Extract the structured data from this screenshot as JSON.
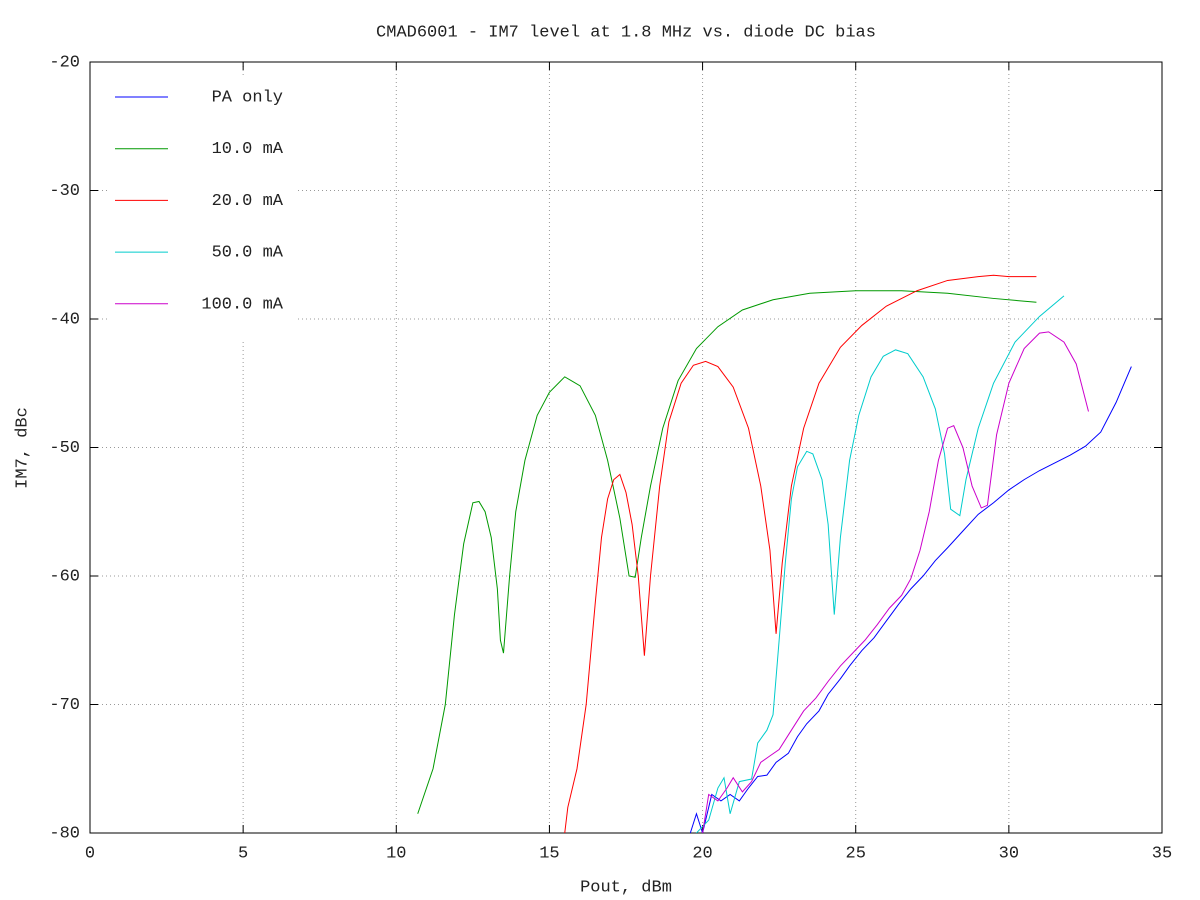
{
  "chart_data": {
    "type": "line",
    "title": "CMAD6001 - IM7 level at 1.8 MHz vs. diode DC bias",
    "x_label": "Pout, dBm",
    "y_label": "IM7, dBc",
    "xlim": [
      0,
      35
    ],
    "ylim": [
      -80,
      -20
    ],
    "xticks": [
      0,
      5,
      10,
      15,
      20,
      25,
      30,
      35
    ],
    "yticks": [
      -80,
      -70,
      -60,
      -50,
      -40,
      -30,
      -20
    ],
    "grid": true,
    "legend": "top-left",
    "series": [
      {
        "name": "PA only",
        "color": "#0000ff",
        "x": [
          19.6,
          19.8,
          20.0,
          20.3,
          20.6,
          20.9,
          21.2,
          21.5,
          21.8,
          22.1,
          22.4,
          22.8,
          23.1,
          23.4,
          23.8,
          24.1,
          24.5,
          24.8,
          25.2,
          25.6,
          26,
          26.4,
          26.8,
          27.2,
          27.6,
          28,
          28.5,
          29,
          29.5,
          30,
          30.5,
          31,
          31.5,
          32,
          32.5,
          33,
          33.5,
          34
        ],
        "values": [
          -80,
          -78.5,
          -80,
          -77,
          -77.5,
          -77,
          -77.5,
          -76.5,
          -75.6,
          -75.5,
          -74.5,
          -73.8,
          -72.5,
          -71.5,
          -70.5,
          -69.2,
          -68,
          -67,
          -65.8,
          -64.8,
          -63.5,
          -62.2,
          -61,
          -60,
          -58.8,
          -57.8,
          -56.5,
          -55.2,
          -54.3,
          -53.3,
          -52.5,
          -51.8,
          -51.2,
          -50.6,
          -49.9,
          -48.8,
          -46.5,
          -43.7
        ]
      },
      {
        "name": "10.0 mA",
        "color": "#009900",
        "x": [
          10.7,
          11.2,
          11.6,
          11.9,
          12.2,
          12.5,
          12.7,
          12.9,
          13.1,
          13.3,
          13.4,
          13.5,
          13.7,
          13.9,
          14.2,
          14.6,
          15,
          15.5,
          16,
          16.5,
          16.9,
          17.3,
          17.6,
          17.8,
          18,
          18.3,
          18.7,
          19.2,
          19.8,
          20.5,
          21.3,
          22.3,
          23.5,
          25,
          26.5,
          28,
          29.5,
          30.9
        ],
        "values": [
          -78.5,
          -75,
          -70,
          -63,
          -57.5,
          -54.3,
          -54.2,
          -55,
          -57,
          -61,
          -65,
          -66,
          -60,
          -55,
          -51,
          -47.5,
          -45.7,
          -44.5,
          -45.2,
          -47.5,
          -51,
          -55.5,
          -60,
          -60.1,
          -57,
          -53,
          -48.5,
          -44.8,
          -42.3,
          -40.6,
          -39.3,
          -38.5,
          -38,
          -37.8,
          -37.8,
          -38,
          -38.4,
          -38.7
        ]
      },
      {
        "name": "20.0 mA",
        "color": "#ff0000",
        "x": [
          15.5,
          15.6,
          15.9,
          16.2,
          16.5,
          16.7,
          16.9,
          17.1,
          17.3,
          17.5,
          17.7,
          17.9,
          18.1,
          18.3,
          18.6,
          18.9,
          19.3,
          19.7,
          20.1,
          20.5,
          21,
          21.5,
          21.9,
          22.2,
          22.4,
          22.6,
          22.9,
          23.3,
          23.8,
          24.5,
          25.2,
          26,
          27,
          28,
          29,
          29.5,
          30,
          30.9
        ],
        "values": [
          -80,
          -78,
          -75,
          -70,
          -62,
          -57,
          -54,
          -52.5,
          -52.1,
          -53.5,
          -56,
          -60,
          -66.2,
          -60,
          -53,
          -48,
          -45,
          -43.6,
          -43.3,
          -43.7,
          -45.3,
          -48.5,
          -53,
          -58,
          -64.5,
          -59,
          -53,
          -48.5,
          -45,
          -42.2,
          -40.5,
          -39,
          -37.8,
          -37,
          -36.7,
          -36.6,
          -36.7,
          -36.7
        ]
      },
      {
        "name": "50.0 mA",
        "color": "#00cccc",
        "x": [
          19.8,
          20.2,
          20.5,
          20.7,
          20.9,
          21.2,
          21.6,
          21.8,
          22.1,
          22.3,
          22.5,
          22.7,
          22.9,
          23.1,
          23.4,
          23.6,
          23.9,
          24.1,
          24.3,
          24.5,
          24.8,
          25.1,
          25.5,
          25.9,
          26.3,
          26.7,
          27.2,
          27.6,
          27.9,
          28.1,
          28.4,
          28.6,
          29,
          29.5,
          30.2,
          31,
          31.8
        ],
        "values": [
          -80,
          -79,
          -76.5,
          -75.7,
          -78.5,
          -76,
          -75.8,
          -73,
          -72,
          -70.8,
          -65,
          -59,
          -54,
          -51.5,
          -50.3,
          -50.5,
          -52.5,
          -56,
          -63,
          -57,
          -51,
          -47.5,
          -44.5,
          -42.9,
          -42.4,
          -42.7,
          -44.5,
          -47,
          -50.5,
          -54.8,
          -55.3,
          -52.5,
          -48.5,
          -45,
          -41.8,
          -39.8,
          -38.2
        ]
      },
      {
        "name": "100.0 mA",
        "color": "#cc00cc",
        "x": [
          20,
          20.2,
          20.5,
          20.8,
          21,
          21.3,
          21.6,
          21.9,
          22.2,
          22.5,
          22.9,
          23.3,
          23.7,
          24.1,
          24.5,
          24.9,
          25.3,
          25.7,
          26.1,
          26.5,
          26.8,
          27.1,
          27.4,
          27.7,
          28,
          28.2,
          28.5,
          28.8,
          29.1,
          29.3,
          29.6,
          30,
          30.5,
          31,
          31.3,
          31.8,
          32.2,
          32.6
        ],
        "values": [
          -80,
          -77,
          -77.5,
          -76.5,
          -75.7,
          -76.8,
          -76,
          -74.5,
          -74,
          -73.5,
          -72,
          -70.5,
          -69.5,
          -68.2,
          -67,
          -66,
          -65,
          -63.8,
          -62.5,
          -61.5,
          -60.2,
          -58,
          -55,
          -51,
          -48.5,
          -48.3,
          -50,
          -53,
          -54.7,
          -54.5,
          -49,
          -45,
          -42.3,
          -41.1,
          -41,
          -41.8,
          -43.5,
          -47.2
        ]
      }
    ]
  }
}
